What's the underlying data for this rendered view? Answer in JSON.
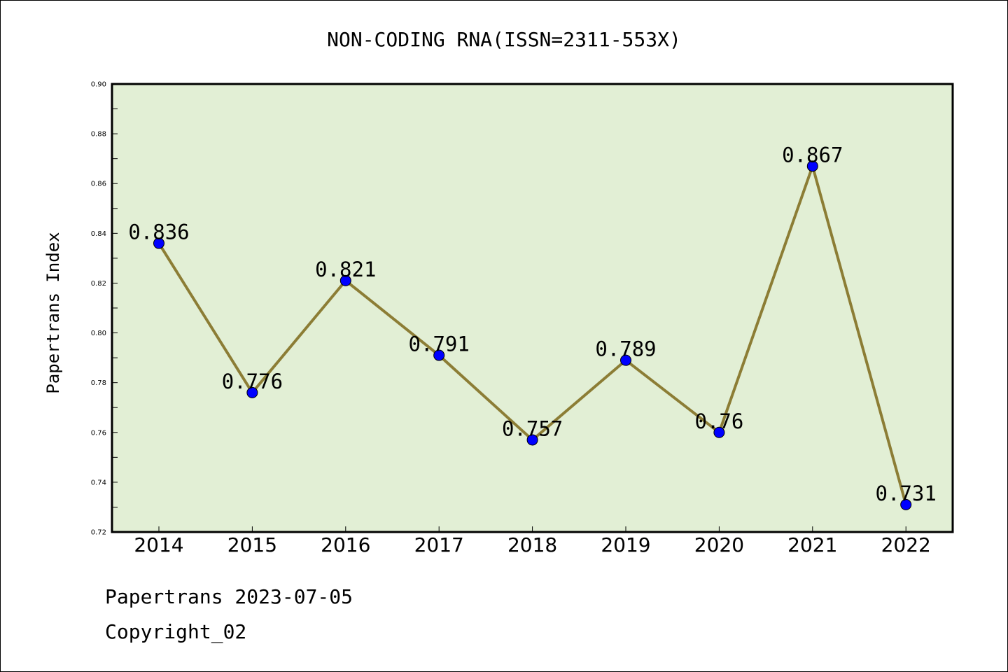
{
  "chart_data": {
    "type": "line",
    "title": "NON-CODING RNA(ISSN=2311-553X)",
    "xlabel": "",
    "ylabel": "Papertrans Index",
    "categories": [
      "2014",
      "2015",
      "2016",
      "2017",
      "2018",
      "2019",
      "2020",
      "2021",
      "2022"
    ],
    "series": [
      {
        "values": [
          0.836,
          0.776,
          0.821,
          0.791,
          0.757,
          0.789,
          0.76,
          0.867,
          0.731
        ],
        "data_labels": [
          "0.836",
          "0.776",
          "0.821",
          "0.791",
          "0.757",
          "0.789",
          "0.76",
          "0.867",
          "0.731"
        ]
      }
    ],
    "ylim": [
      0.72,
      0.9
    ],
    "yticks": [
      "0.72",
      "0.74",
      "0.76",
      "0.78",
      "0.80",
      "0.82",
      "0.84",
      "0.86",
      "0.88",
      "0.90"
    ],
    "grid": false,
    "legend": "none",
    "colors": {
      "plot_background": "#e2efd5",
      "line": "#8c7d35",
      "marker": "#0000ff"
    }
  },
  "footer": {
    "date_line": "Papertrans 2023-07-05",
    "copyright_line": "Copyright_02"
  }
}
